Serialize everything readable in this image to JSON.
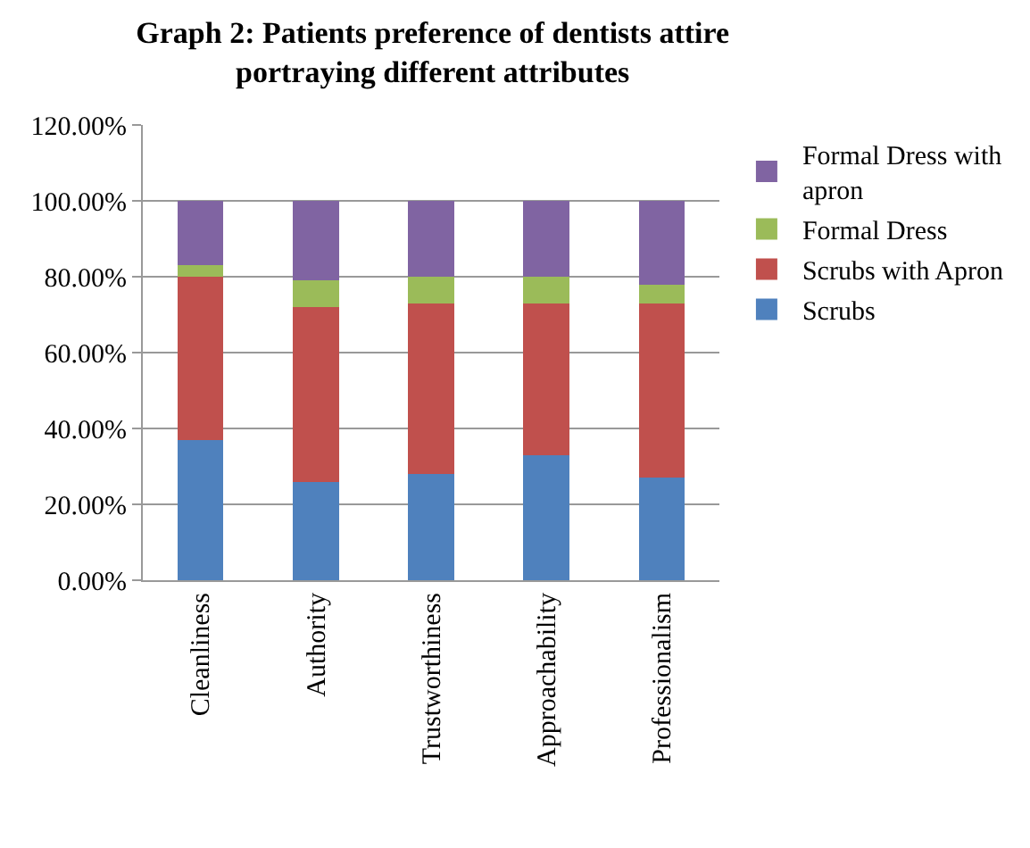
{
  "chart_data": {
    "type": "bar",
    "stacked": true,
    "title": "Graph 2: Patients preference of dentists attire\nportraying different attributes",
    "categories": [
      "Cleanliness",
      "Authority",
      "Trustworthiness",
      "Approachability",
      "Professionalism"
    ],
    "series": [
      {
        "name": "Scrubs",
        "color": "#4f81bd",
        "values": [
          37,
          26,
          28,
          33,
          27
        ]
      },
      {
        "name": "Scrubs with Apron",
        "color": "#c0504d",
        "values": [
          43,
          46,
          45,
          40,
          46
        ]
      },
      {
        "name": "Formal Dress",
        "color": "#9bbb59",
        "values": [
          3,
          7,
          7,
          7,
          5
        ]
      },
      {
        "name": "Formal Dress with\napron",
        "color": "#8064a2",
        "values": [
          17,
          21,
          20,
          20,
          22
        ]
      }
    ],
    "ylim": [
      0,
      120
    ],
    "yticks": [
      {
        "value": 0,
        "label": "0.00%"
      },
      {
        "value": 20,
        "label": "20.00%"
      },
      {
        "value": 40,
        "label": "40.00%"
      },
      {
        "value": 60,
        "label": "60.00%"
      },
      {
        "value": 80,
        "label": "80.00%"
      },
      {
        "value": 100,
        "label": "100.00%"
      },
      {
        "value": 120,
        "label": "120.00%"
      }
    ],
    "grid": "y",
    "legend": "right"
  }
}
